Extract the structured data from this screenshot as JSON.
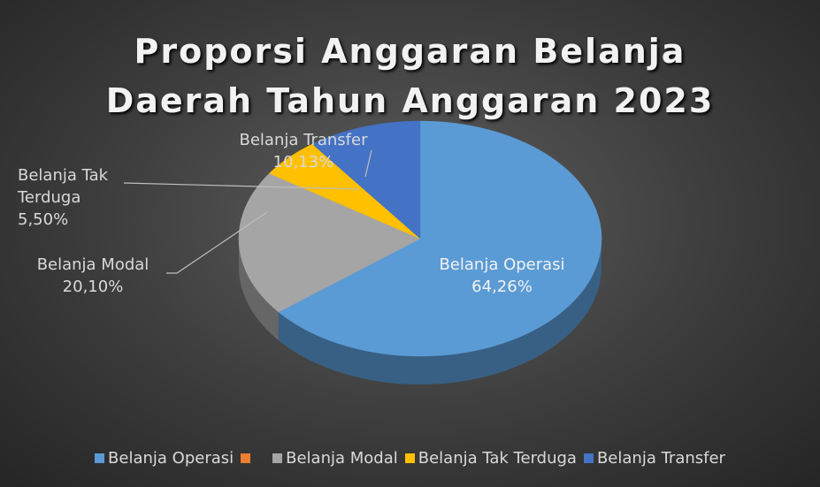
{
  "chart_data": {
    "type": "pie3d",
    "title": "Proporsi Anggaran Belanja Daerah Tahun Anggaran 2023",
    "categories": [
      "Belanja Operasi",
      null,
      "Belanja Modal",
      "Belanja Tak Terduga",
      "Belanja Transfer"
    ],
    "values": [
      64.26,
      null,
      20.1,
      5.5,
      10.13
    ],
    "value_labels": [
      "64,26%",
      null,
      "20,10%",
      "5,50%",
      "10,13%"
    ],
    "colors": [
      "#5b9bd5",
      "#ed7d31",
      "#a5a5a5",
      "#ffc000",
      "#4472c4"
    ],
    "legend": "bottom"
  }
}
